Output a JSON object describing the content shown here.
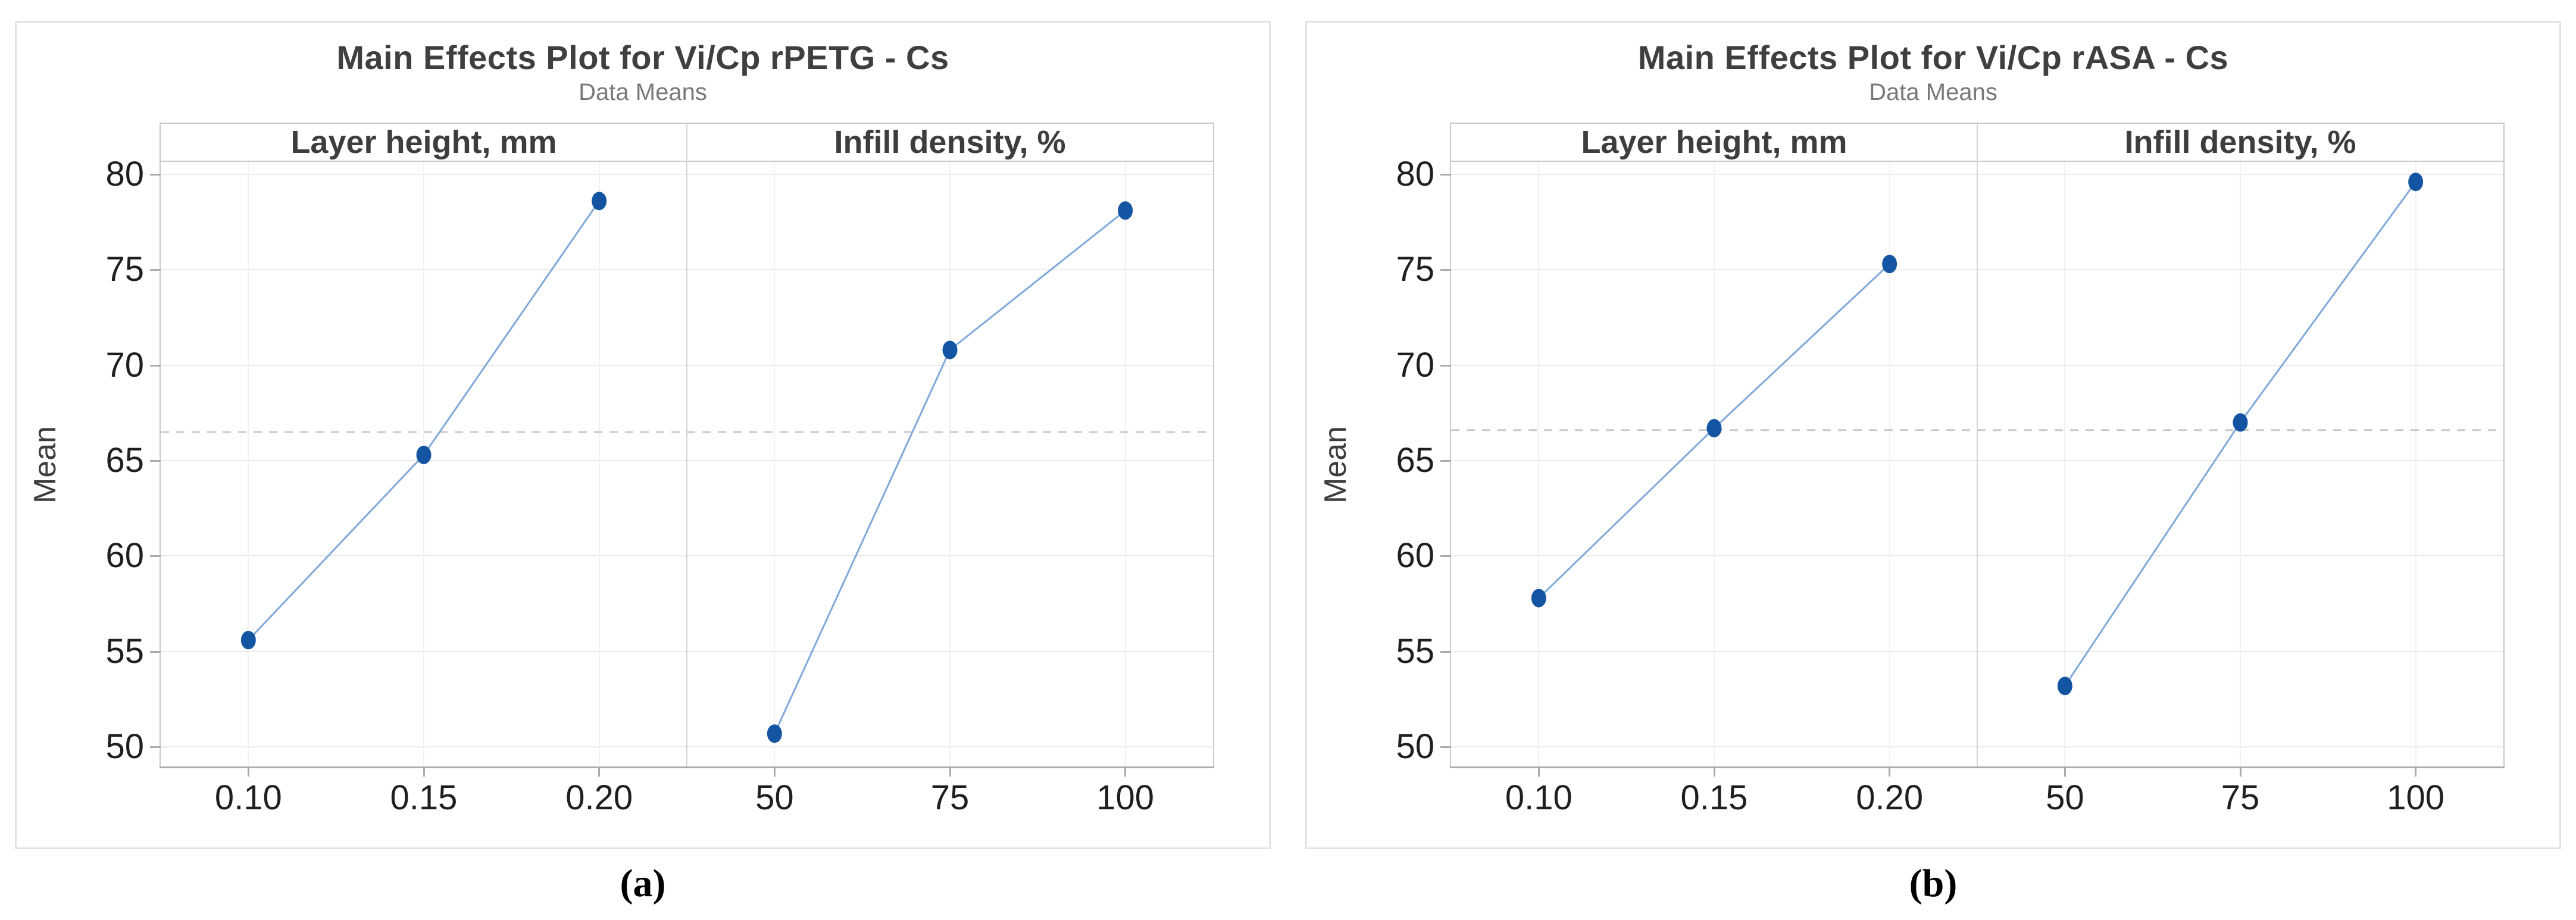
{
  "colors": {
    "marker_blue": "#1455A3",
    "line_blue": "#7FA9DA",
    "mean_dash_gray": "#C9C9C9",
    "grid_gray": "#EBEBEB",
    "frame_gray": "#C9C9C9",
    "axis_gray": "#ABABAB"
  },
  "chart_data": [
    {
      "id": "a",
      "type": "line",
      "title": "Main Effects Plot for Vi/Cp rPETG - Cs",
      "subtitle": "Data Means",
      "ylabel": "Mean",
      "caption": "(a)",
      "yticks": [
        80,
        75,
        70,
        65,
        60,
        55,
        50
      ],
      "ylim": [
        48.95,
        80.65
      ],
      "grid": true,
      "legend": "none",
      "mean_line": 66.5,
      "panels": [
        {
          "label": "Layer height, mm",
          "categories": [
            "0.10",
            "0.15",
            "0.20"
          ],
          "values": [
            55.6,
            65.3,
            78.6
          ]
        },
        {
          "label": "Infill density, %",
          "categories": [
            "50",
            "75",
            "100"
          ],
          "values": [
            50.7,
            70.8,
            78.1
          ]
        }
      ]
    },
    {
      "id": "b",
      "type": "line",
      "title": "Main Effects Plot for Vi/Cp rASA - Cs",
      "subtitle": "Data Means",
      "ylabel": "Mean",
      "caption": "(b)",
      "yticks": [
        80,
        75,
        70,
        65,
        60,
        55,
        50
      ],
      "ylim": [
        48.95,
        80.65
      ],
      "grid": true,
      "legend": "none",
      "mean_line": 66.6,
      "panels": [
        {
          "label": "Layer height, mm",
          "categories": [
            "0.10",
            "0.15",
            "0.20"
          ],
          "values": [
            57.8,
            66.7,
            75.3
          ]
        },
        {
          "label": "Infill density, %",
          "categories": [
            "50",
            "75",
            "100"
          ],
          "values": [
            53.2,
            67.0,
            79.6
          ]
        }
      ]
    }
  ]
}
